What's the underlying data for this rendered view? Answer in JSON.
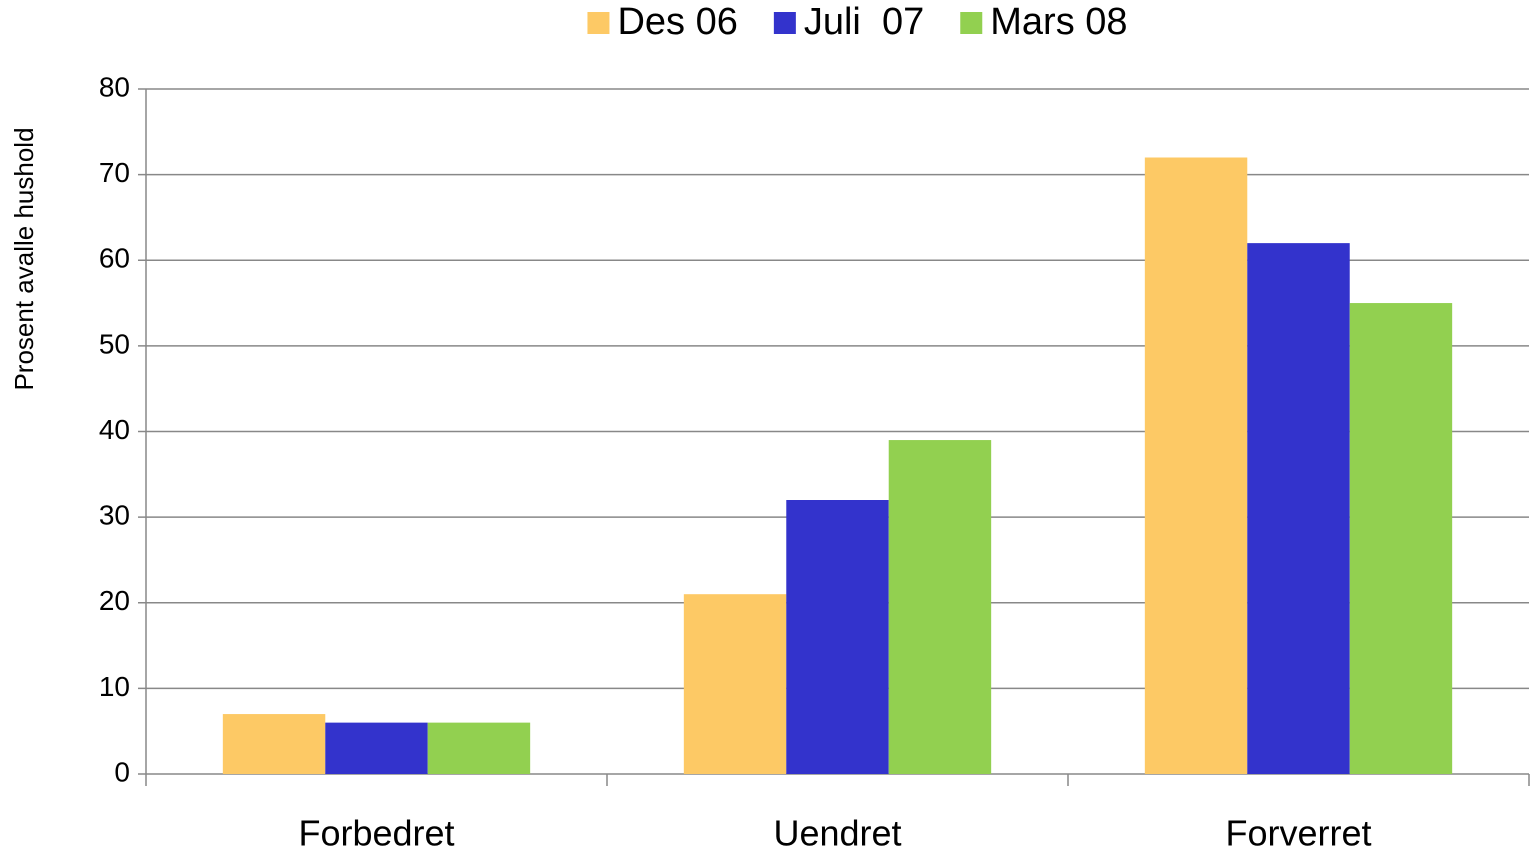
{
  "chart_data": {
    "type": "bar",
    "y_label": "Prosent avalle hushold",
    "categories": [
      "Forbedret",
      "Uendret",
      "Forverret"
    ],
    "series": [
      {
        "name": "Des 06",
        "color": "#fdc965",
        "values": [
          7,
          21,
          72
        ]
      },
      {
        "name": "Juli  07",
        "color": "#3333cc",
        "values": [
          6,
          32,
          62
        ]
      },
      {
        "name": "Mars 08",
        "color": "#92d050",
        "values": [
          6,
          39,
          55
        ]
      }
    ],
    "ylim": [
      0,
      80
    ],
    "yticks": [
      0,
      10,
      20,
      30,
      40,
      50,
      60,
      70,
      80
    ],
    "grid": true,
    "legend": "top"
  }
}
